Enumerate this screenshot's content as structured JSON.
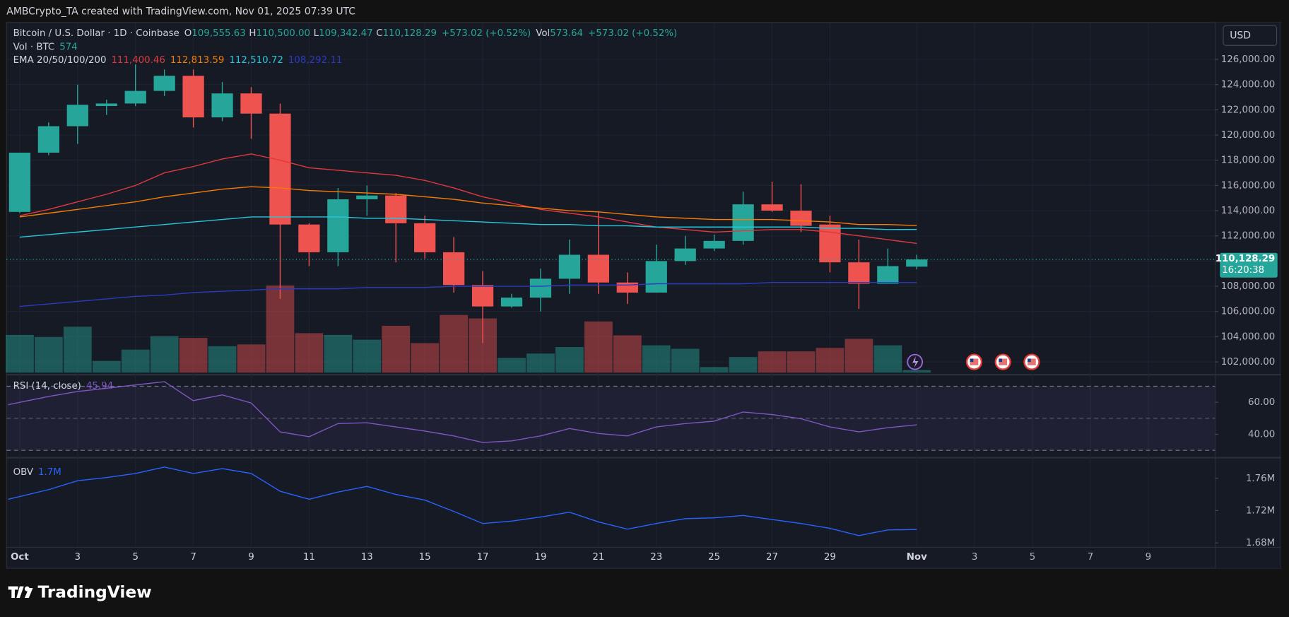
{
  "header": "AMBCrypto_TA created with TradingView.com, Nov 01, 2025 07:39 UTC",
  "currency": "USD",
  "brand": "TradingView",
  "last_price": {
    "value": 110128.29,
    "label": "110,128.29"
  },
  "countdown": "16:20:38",
  "chart_data": [
    {
      "type": "candlestick",
      "title": "Bitcoin / U.S. Dollar · 1D · Coinbase",
      "ohlc_legend": [
        "O",
        "109,555.63",
        "H",
        "110,500.00",
        "L",
        "109,342.47",
        "C",
        "110,128.29",
        "+573.02 (+0.52%)",
        "Vol",
        "573.64",
        "+573.02 (+0.52%)"
      ],
      "categories": [
        "Oct",
        null,
        "3",
        null,
        "5",
        null,
        "7",
        null,
        "9",
        null,
        "11",
        null,
        "13",
        null,
        "15",
        null,
        "17",
        null,
        "19",
        null,
        "21",
        null,
        "23",
        null,
        "25",
        null,
        "27",
        null,
        "29",
        null,
        null,
        "Nov"
      ],
      "future_ticks": [
        "3",
        "5",
        "7",
        "9"
      ],
      "open": [
        113900,
        118600,
        120700,
        122300,
        122500,
        123500,
        124700,
        121400,
        123300,
        121700,
        112900,
        110700,
        114900,
        115200,
        113000,
        110700,
        108100,
        106400,
        107100,
        108600,
        110500,
        108300,
        107500,
        110000,
        111000,
        111600,
        114500,
        114000,
        112900,
        109900,
        108200,
        109555.63
      ],
      "high": [
        118600,
        121000,
        124000,
        122800,
        125600,
        125200,
        125200,
        124200,
        123800,
        122500,
        113000,
        115800,
        116000,
        115400,
        113600,
        111900,
        109200,
        107400,
        109400,
        111700,
        113900,
        109100,
        111300,
        112000,
        112100,
        115500,
        116300,
        116100,
        113600,
        111700,
        111000,
        110500
      ],
      "low": [
        113800,
        118400,
        119300,
        121600,
        122300,
        123100,
        120600,
        121100,
        119700,
        107000,
        109600,
        109600,
        113600,
        109900,
        110200,
        107500,
        103500,
        106300,
        106000,
        107400,
        107400,
        106600,
        107500,
        109700,
        110800,
        111300,
        113900,
        112300,
        109100,
        106200,
        108200,
        109342.47
      ],
      "close": [
        118600,
        120700,
        122400,
        122500,
        123500,
        124700,
        121400,
        123300,
        121700,
        112900,
        110700,
        114900,
        115200,
        113000,
        110700,
        108100,
        106400,
        107100,
        108600,
        110500,
        108300,
        107500,
        110000,
        111000,
        111600,
        114500,
        114000,
        112800,
        109900,
        108200,
        109600,
        110128.29
      ],
      "up_color": "#26a69a",
      "down_color": "#ef5350",
      "ylim": [
        101150,
        128870
      ],
      "yticks": [
        {
          "value": 102000,
          "label": "102,000.00"
        },
        {
          "value": 104000,
          "label": "104,000.00"
        },
        {
          "value": 106000,
          "label": "106,000.00"
        },
        {
          "value": 108000,
          "label": "108,000.00"
        },
        {
          "value": 110000,
          "label": "110,000.00"
        },
        {
          "value": 112000,
          "label": "112,000.00"
        },
        {
          "value": 114000,
          "label": "114,000.00"
        },
        {
          "value": 116000,
          "label": "116,000.00"
        },
        {
          "value": 118000,
          "label": "118,000.00"
        },
        {
          "value": 120000,
          "label": "120,000.00"
        },
        {
          "value": 122000,
          "label": "122,000.00"
        },
        {
          "value": 124000,
          "label": "124,000.00"
        },
        {
          "value": 126000,
          "label": "126,000.00"
        }
      ],
      "grid": true,
      "ema_title": "EMA 20/50/100/200",
      "series": [
        {
          "color": "#e0393e",
          "value_label": "111,400.46",
          "values": [
            113600,
            114100,
            114700,
            115300,
            116000,
            117000,
            117500,
            118100,
            118500,
            118000,
            117400,
            117200,
            117000,
            116800,
            116400,
            115800,
            115100,
            114600,
            114100,
            113800,
            113500,
            113100,
            112700,
            112500,
            112300,
            112400,
            112500,
            112500,
            112300,
            112000,
            111700,
            111400.46
          ]
        },
        {
          "color": "#f57c00",
          "value_label": "112,813.59",
          "values": [
            113500,
            113800,
            114100,
            114400,
            114700,
            115100,
            115400,
            115700,
            115900,
            115800,
            115600,
            115500,
            115400,
            115300,
            115100,
            114900,
            114600,
            114400,
            114200,
            114000,
            113900,
            113700,
            113500,
            113400,
            113300,
            113300,
            113300,
            113200,
            113100,
            112900,
            112900,
            112813.59
          ]
        },
        {
          "color": "#26c6da",
          "value_label": "112,510.72",
          "values": [
            111900,
            112100,
            112300,
            112500,
            112700,
            112900,
            113100,
            113300,
            113500,
            113500,
            113500,
            113500,
            113400,
            113400,
            113300,
            113200,
            113100,
            113000,
            112900,
            112900,
            112800,
            112800,
            112700,
            112700,
            112700,
            112700,
            112700,
            112700,
            112600,
            112600,
            112500,
            112510.72
          ]
        },
        {
          "color": "#2a3bc0",
          "value_label": "108,292.11",
          "values": [
            106400,
            106600,
            106800,
            107000,
            107200,
            107300,
            107500,
            107600,
            107700,
            107800,
            107800,
            107800,
            107900,
            107900,
            107900,
            108000,
            108000,
            108000,
            108000,
            108100,
            108100,
            108100,
            108200,
            108200,
            108200,
            108200,
            108300,
            108300,
            108300,
            108300,
            108300,
            108292.11
          ]
        }
      ]
    },
    {
      "type": "bar",
      "title": "Vol · BTC",
      "value_label": "574",
      "values": [
        8700,
        8200,
        10600,
        2700,
        5300,
        8400,
        8000,
        6100,
        6500,
        20100,
        9100,
        8700,
        7600,
        10800,
        6800,
        13300,
        12500,
        3400,
        4400,
        5900,
        11800,
        8600,
        6300,
        5500,
        1300,
        3600,
        4900,
        4900,
        5700,
        7800,
        6300,
        573.64
      ],
      "up_color": "#26a69a",
      "down_color": "#ef5350"
    },
    {
      "type": "line",
      "title": "RSI (14, close)",
      "value_label": "45.94",
      "color": "#7e57c2",
      "values": [
        58.5,
        63.6,
        66.7,
        68.7,
        70.8,
        72.8,
        61,
        64.6,
        59.5,
        41.5,
        38.5,
        46.7,
        47.2,
        44.6,
        42,
        39,
        34.9,
        35.9,
        39,
        43.6,
        40.5,
        39,
        44.6,
        46.7,
        48.2,
        53.9,
        52.3,
        49.7,
        44.6,
        41.5,
        44.1,
        45.94
      ],
      "ylim": [
        27.7,
        75.9
      ],
      "yticks": [
        {
          "value": 40,
          "label": "40.00"
        },
        {
          "value": 60,
          "label": "60.00"
        }
      ],
      "band": [
        30,
        70
      ],
      "midline": 50
    },
    {
      "type": "line",
      "title": "OBV",
      "value_label": "1.7M",
      "color": "#2962ff",
      "values": [
        1734000,
        1746000,
        1757000,
        1761000,
        1766000,
        1774000,
        1766000,
        1772000,
        1766000,
        1744000,
        1734000,
        1743000,
        1750000,
        1740000,
        1733000,
        1719000,
        1704000,
        1707000,
        1712000,
        1718000,
        1706000,
        1697000,
        1704000,
        1710000,
        1711000,
        1714000,
        1709000,
        1704000,
        1698000,
        1689000,
        1696000,
        1696600
      ],
      "ylim": [
        1676000,
        1784000
      ],
      "yticks": [
        {
          "value": 1680000,
          "label": "1.68M"
        },
        {
          "value": 1720000,
          "label": "1.72M"
        },
        {
          "value": 1760000,
          "label": "1.76M"
        }
      ]
    }
  ]
}
